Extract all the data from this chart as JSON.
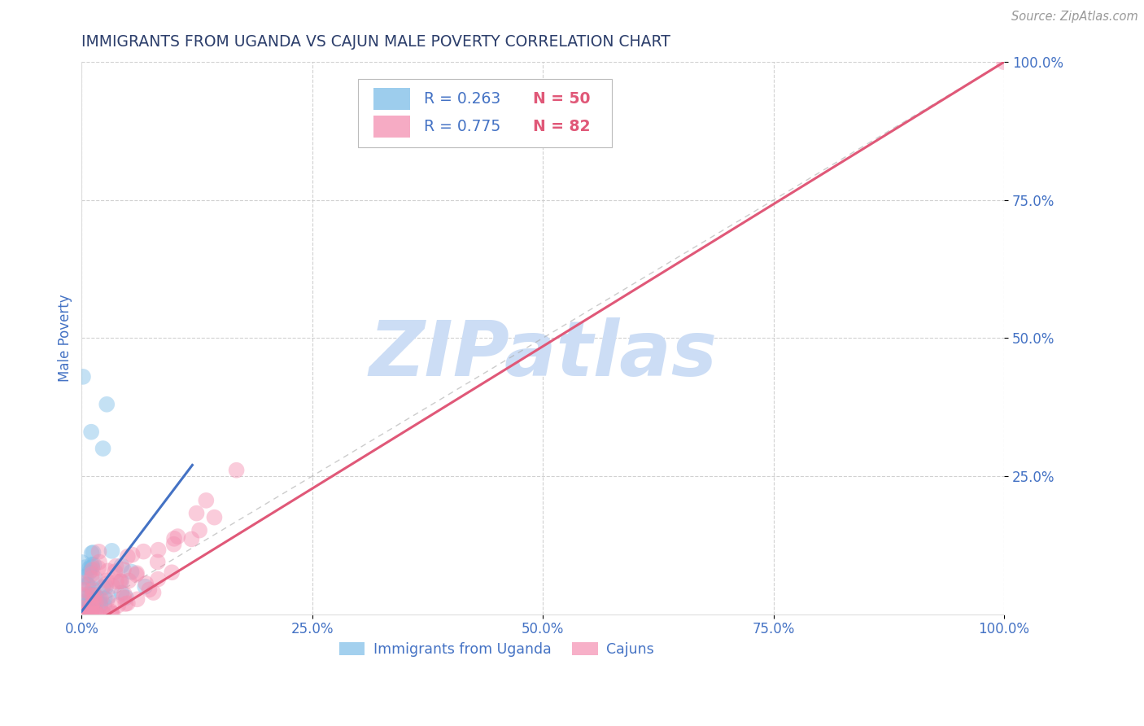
{
  "title": "IMMIGRANTS FROM UGANDA VS CAJUN MALE POVERTY CORRELATION CHART",
  "source": "Source: ZipAtlas.com",
  "xlabel_label": "Immigrants from Uganda",
  "ylabel_label": "Male Poverty",
  "legend_label1": "Immigrants from Uganda",
  "legend_label2": "Cajuns",
  "R1": 0.263,
  "N1": 50,
  "R2": 0.775,
  "N2": 82,
  "color_blue": "#7dbde8",
  "color_pink": "#f48fb1",
  "line_blue": "#4472c4",
  "line_pink": "#e05878",
  "diag_color": "#aaaaaa",
  "title_color": "#2c3e6b",
  "axis_label_color": "#4472c4",
  "tick_color": "#4472c4",
  "legend_R_color": "#4472c4",
  "legend_N_color": "#e05878",
  "watermark_color": "#ccddf5",
  "watermark": "ZIPatlas",
  "grid_color": "#cccccc",
  "xlim": [
    0,
    1
  ],
  "ylim": [
    0,
    1
  ],
  "xticks": [
    0,
    0.25,
    0.5,
    0.75,
    1.0
  ],
  "yticks": [
    0.25,
    0.5,
    0.75,
    1.0
  ],
  "xtick_labels": [
    "0.0%",
    "25.0%",
    "50.0%",
    "75.0%",
    "100.0%"
  ],
  "ytick_labels": [
    "25.0%",
    "50.0%",
    "75.0%",
    "100.0%"
  ]
}
